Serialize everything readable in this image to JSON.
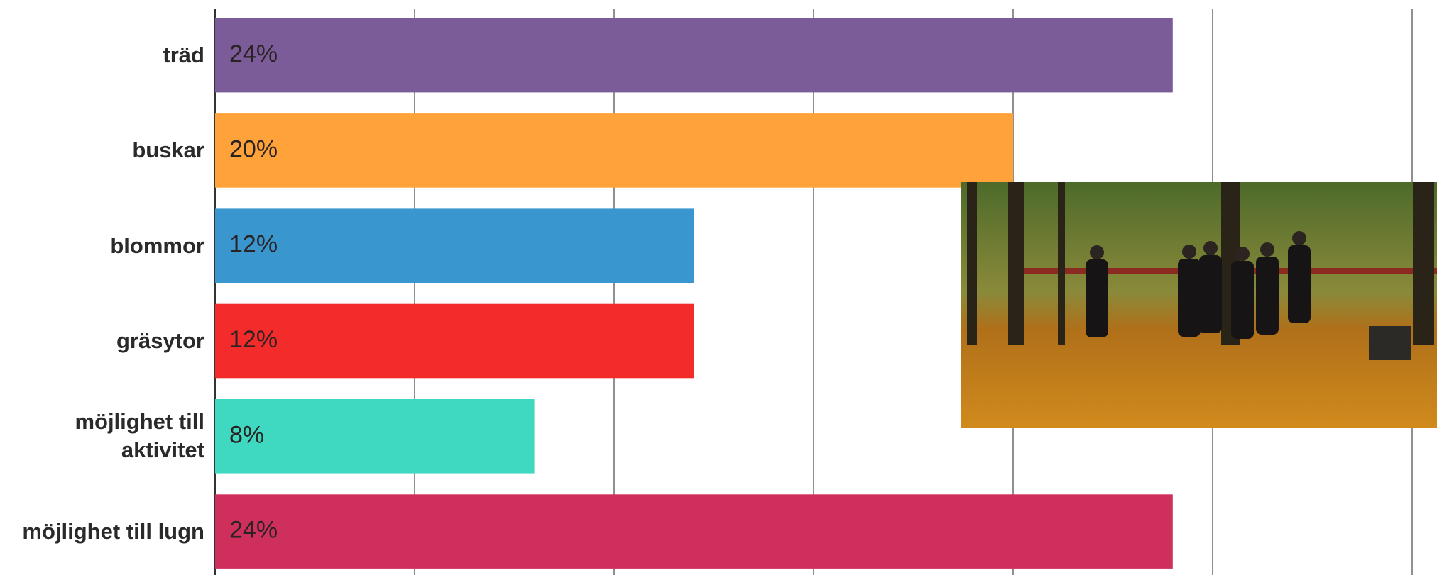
{
  "chart_data": {
    "type": "bar",
    "orientation": "horizontal",
    "categories": [
      "träd",
      "buskar",
      "blommor",
      "gräsytor",
      "möjlighet till aktivitet",
      "möjlighet till lugn"
    ],
    "values": [
      24,
      20,
      12,
      12,
      8,
      24
    ],
    "value_labels": [
      "24%",
      "20%",
      "12%",
      "12%",
      "8%",
      "24%"
    ],
    "colors": [
      "#7b5b98",
      "#ffa23a",
      "#3a96cf",
      "#f42b2b",
      "#3fd8c0",
      "#cf2f5b"
    ],
    "xlim": [
      0,
      30
    ],
    "xticks": [
      0,
      5,
      10,
      15,
      20,
      25,
      30
    ],
    "grid": true
  }
}
